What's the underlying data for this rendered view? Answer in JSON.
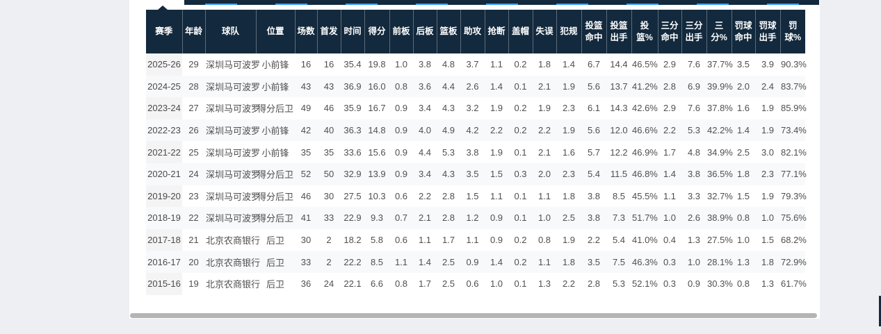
{
  "colors": {
    "page_bg": "#edeff3",
    "card_bg": "#ffffff",
    "header_bg": "#13293d",
    "header_text": "#ffffff",
    "tab_accent_blue": "#2f9bf4",
    "stripe_bg": "#f8f9fa",
    "season_col_bg": "#f4f4f5",
    "body_text": "#4f4f4f",
    "scrollbar_thumb": "#b4b4b4"
  },
  "table": {
    "columns": [
      "赛季",
      "年龄",
      "球队",
      "位置",
      "场数",
      "首发",
      "时间",
      "得分",
      "前板",
      "后板",
      "篮板",
      "助攻",
      "抢断",
      "盖帽",
      "失误",
      "犯规",
      "投篮命中",
      "投篮出手",
      "投篮%",
      "三分命中",
      "三分出手",
      "三分%",
      "罚球命中",
      "罚球出手",
      "罚球%"
    ],
    "rows": [
      [
        "2025-26",
        "29",
        "深圳马可波罗",
        "小前锋",
        "16",
        "16",
        "35.4",
        "19.8",
        "1.0",
        "3.8",
        "4.8",
        "3.7",
        "1.1",
        "0.2",
        "1.8",
        "1.4",
        "6.7",
        "14.4",
        "46.5%",
        "2.9",
        "7.6",
        "37.7%",
        "3.5",
        "3.9",
        "90.3%"
      ],
      [
        "2024-25",
        "28",
        "深圳马可波罗",
        "小前锋",
        "43",
        "43",
        "36.9",
        "16.0",
        "0.8",
        "3.6",
        "4.4",
        "2.6",
        "1.4",
        "0.1",
        "2.1",
        "1.9",
        "5.6",
        "13.7",
        "41.2%",
        "2.8",
        "6.9",
        "39.9%",
        "2.0",
        "2.4",
        "83.7%"
      ],
      [
        "2023-24",
        "27",
        "深圳马可波罗",
        "得分后卫",
        "49",
        "46",
        "35.9",
        "16.7",
        "0.9",
        "3.4",
        "4.3",
        "3.2",
        "1.9",
        "0.2",
        "1.9",
        "2.3",
        "6.1",
        "14.3",
        "42.6%",
        "2.9",
        "7.6",
        "37.8%",
        "1.6",
        "1.9",
        "85.9%"
      ],
      [
        "2022-23",
        "26",
        "深圳马可波罗",
        "小前锋",
        "42",
        "40",
        "36.3",
        "14.8",
        "0.9",
        "4.0",
        "4.9",
        "4.2",
        "2.2",
        "0.2",
        "2.2",
        "1.9",
        "5.6",
        "12.0",
        "46.6%",
        "2.2",
        "5.3",
        "42.2%",
        "1.4",
        "1.9",
        "73.4%"
      ],
      [
        "2021-22",
        "25",
        "深圳马可波罗",
        "小前锋",
        "35",
        "35",
        "33.6",
        "15.6",
        "0.9",
        "4.4",
        "5.3",
        "3.8",
        "1.9",
        "0.1",
        "2.1",
        "1.6",
        "5.7",
        "12.2",
        "46.9%",
        "1.7",
        "4.8",
        "34.9%",
        "2.5",
        "3.0",
        "82.1%"
      ],
      [
        "2020-21",
        "24",
        "深圳马可波罗",
        "得分后卫",
        "52",
        "50",
        "32.9",
        "13.9",
        "0.9",
        "3.4",
        "4.3",
        "3.5",
        "1.5",
        "0.3",
        "2.0",
        "2.3",
        "5.4",
        "11.5",
        "46.8%",
        "1.4",
        "3.8",
        "36.5%",
        "1.8",
        "2.3",
        "77.1%"
      ],
      [
        "2019-20",
        "23",
        "深圳马可波罗",
        "得分后卫",
        "46",
        "30",
        "27.5",
        "10.3",
        "0.6",
        "2.2",
        "2.8",
        "1.5",
        "1.1",
        "0.1",
        "1.1",
        "1.8",
        "3.8",
        "8.5",
        "45.5%",
        "1.1",
        "3.3",
        "32.7%",
        "1.5",
        "1.9",
        "79.3%"
      ],
      [
        "2018-19",
        "22",
        "深圳马可波罗",
        "得分后卫",
        "41",
        "33",
        "22.9",
        "9.3",
        "0.7",
        "2.1",
        "2.8",
        "1.2",
        "0.9",
        "0.1",
        "1.0",
        "2.5",
        "3.8",
        "7.3",
        "51.7%",
        "1.0",
        "2.6",
        "38.9%",
        "0.8",
        "1.0",
        "75.6%"
      ],
      [
        "2017-18",
        "21",
        "北京农商银行",
        "后卫",
        "30",
        "2",
        "18.2",
        "5.8",
        "0.6",
        "1.1",
        "1.7",
        "1.1",
        "0.9",
        "0.2",
        "0.8",
        "1.9",
        "2.2",
        "5.4",
        "41.0%",
        "0.4",
        "1.3",
        "27.5%",
        "1.0",
        "1.5",
        "68.2%"
      ],
      [
        "2016-17",
        "20",
        "北京农商银行",
        "后卫",
        "33",
        "2",
        "22.2",
        "8.5",
        "1.1",
        "1.4",
        "2.5",
        "0.9",
        "1.4",
        "0.2",
        "1.1",
        "1.8",
        "3.5",
        "7.5",
        "46.3%",
        "0.3",
        "1.0",
        "28.1%",
        "1.3",
        "1.8",
        "72.9%"
      ],
      [
        "2015-16",
        "19",
        "北京农商银行",
        "后卫",
        "36",
        "24",
        "22.1",
        "6.6",
        "0.8",
        "1.7",
        "2.5",
        "0.6",
        "1.0",
        "0.1",
        "1.3",
        "2.2",
        "2.8",
        "5.3",
        "52.1%",
        "0.3",
        "0.9",
        "30.3%",
        "0.8",
        "1.3",
        "61.7%"
      ]
    ]
  }
}
